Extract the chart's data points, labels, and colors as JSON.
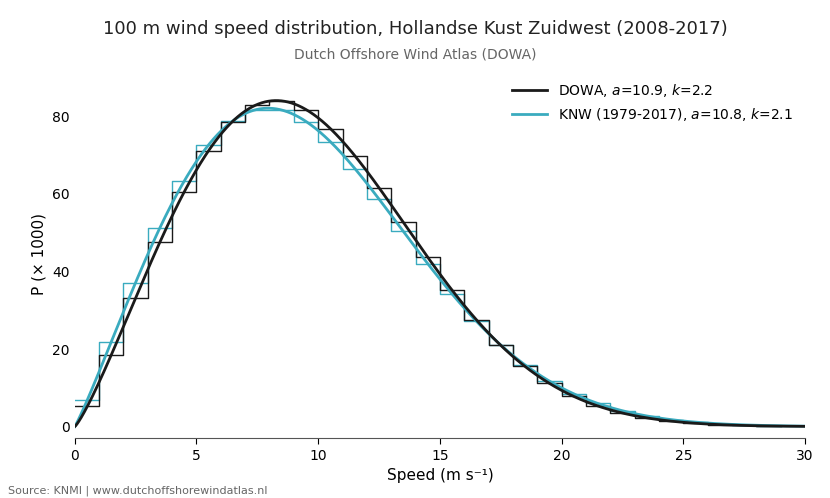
{
  "title": "100 m wind speed distribution, Hollandse Kust Zuidwest (2008-2017)",
  "subtitle": "Dutch Offshore Wind Atlas (DOWA)",
  "xlabel": "Speed (m s⁻¹)",
  "ylabel": "P (× 1000)",
  "source": "Source: KNMI | www.dutchoffshorewindatlas.nl",
  "xlim": [
    0,
    30
  ],
  "ylim": [
    -3,
    92
  ],
  "xticks": [
    0,
    5,
    10,
    15,
    20,
    25,
    30
  ],
  "yticks": [
    0,
    20,
    40,
    60,
    80
  ],
  "dowa": {
    "a": 10.9,
    "k": 2.2,
    "color": "#1a1a1a",
    "label_display": "DOWA, $a$=10.9, $k$=2.2"
  },
  "knw": {
    "a": 10.8,
    "k": 2.1,
    "color": "#3aabbf",
    "label": "KNW (1979-2017), $a$=10.8, $k$=2.1"
  },
  "bin_width": 1.0,
  "background_color": "#ffffff",
  "title_fontsize": 13,
  "subtitle_fontsize": 10,
  "label_fontsize": 11,
  "tick_fontsize": 10,
  "legend_fontsize": 10,
  "source_fontsize": 8
}
